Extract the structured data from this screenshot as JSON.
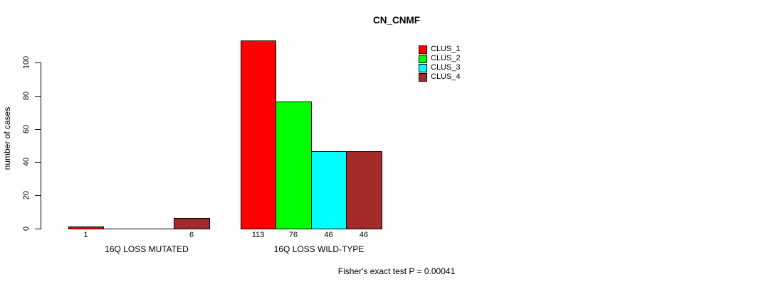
{
  "chart_data": {
    "type": "bar",
    "title": "CN_CNMF",
    "ylabel": "number of cases",
    "axis_range": [
      0,
      100
    ],
    "yticks": [
      0,
      20,
      40,
      60,
      80,
      100
    ],
    "grid": false,
    "legend_position": "top-right",
    "categories": [
      "16Q LOSS MUTATED",
      "16Q LOSS WILD-TYPE"
    ],
    "series": [
      {
        "name": "CLUS_1",
        "color": "#FF0000",
        "values": [
          1,
          113
        ]
      },
      {
        "name": "CLUS_2",
        "color": "#00FF00",
        "values": [
          0,
          76
        ]
      },
      {
        "name": "CLUS_3",
        "color": "#00FFFF",
        "values": [
          0,
          46
        ]
      },
      {
        "name": "CLUS_4",
        "color": "#A52A2A",
        "values": [
          6,
          46
        ]
      }
    ],
    "bar_value_labels": [
      [
        "1",
        "",
        "",
        "6"
      ],
      [
        "113",
        "76",
        "46",
        "46"
      ]
    ],
    "annotation": "Fisher's exact test P = 0.00041"
  }
}
